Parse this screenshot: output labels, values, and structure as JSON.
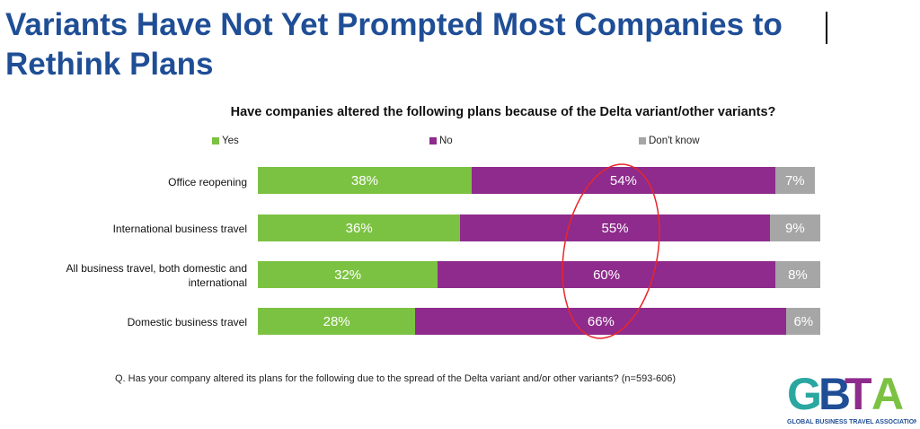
{
  "slide_title": "Variants Have Not Yet Prompted Most Companies to Rethink Plans",
  "footnote": "Q. Has your company altered its plans for the following due to the spread of the Delta variant and/or other variants? (n=593-606)",
  "logo": {
    "letters": "GBTA",
    "tagline": "GLOBAL BUSINESS TRAVEL ASSOCIATION"
  },
  "chart_data": {
    "type": "bar",
    "orientation": "horizontal",
    "stacked": true,
    "title": "Have companies altered the following plans because of the Delta variant/other variants?",
    "legend_position": "top",
    "categories": [
      "Office reopening",
      "International business travel",
      "All business travel, both domestic and international",
      "Domestic business travel"
    ],
    "series": [
      {
        "name": "Yes",
        "color": "#7cc242",
        "values": [
          38,
          36,
          32,
          28
        ],
        "labels": [
          "38%",
          "36%",
          "32%",
          "28%"
        ]
      },
      {
        "name": "No",
        "color": "#8e2b8c",
        "values": [
          54,
          55,
          60,
          66
        ],
        "labels": [
          "54%",
          "55%",
          "60%",
          "66%"
        ]
      },
      {
        "name": "Don't know",
        "color": "#a6a6a6",
        "values": [
          7,
          9,
          8,
          6
        ],
        "labels": [
          "7%",
          "9%",
          "8%",
          "6%"
        ]
      }
    ],
    "annotation": "red ellipse circling the No values"
  }
}
